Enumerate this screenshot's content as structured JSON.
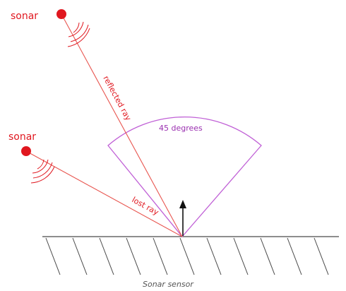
{
  "labels": {
    "sonar_top": "sonar",
    "sonar_left": "sonar",
    "reflected_ray": "reflected ray",
    "lost_ray": "lost ray",
    "angle": "45 degrees",
    "caption": "Sonar sensor"
  },
  "colors": {
    "sonar": "#e0171f",
    "ray": "#e8554f",
    "cone": "#c060d6",
    "angle_text": "#9a2fb0",
    "ground": "#4a4a4a",
    "caption": "#555555"
  }
}
